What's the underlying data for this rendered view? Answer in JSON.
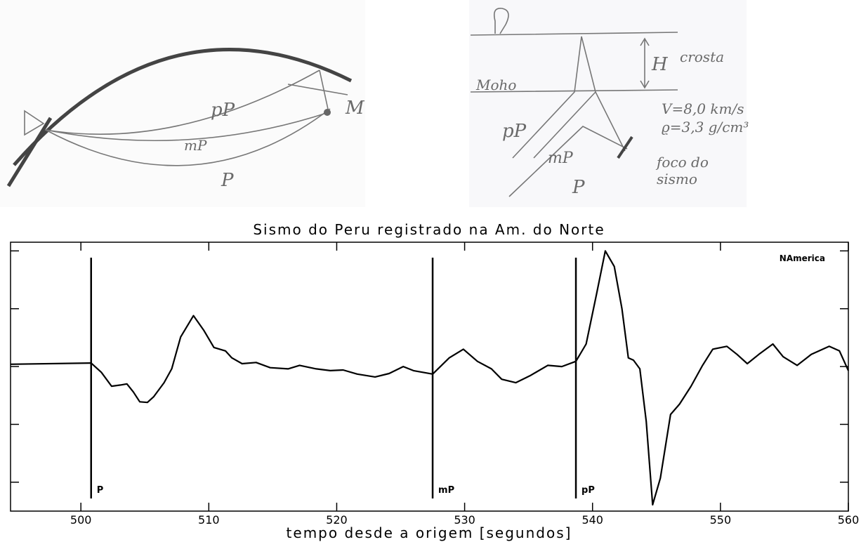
{
  "sketches": {
    "ray_paths": {
      "pP": "pP",
      "mP": "mP",
      "P": "P",
      "station": "M"
    },
    "crust_model": {
      "H": "H",
      "crust": "crosta",
      "moho": "Moho",
      "velocity": "V=8,0 km/s",
      "density": "ϱ=3,3 g/cm³",
      "pP": "pP",
      "mP": "mP",
      "P": "P",
      "focus_1": "foco do",
      "focus_2": "sismo"
    }
  },
  "chart_data": {
    "type": "line",
    "title": "Sismo do Peru registrado na Am. do Norte",
    "xlabel": "tempo desde a origem [segundos]",
    "annotation": "NAmerica",
    "xlim": [
      494.5,
      560
    ],
    "xticks": [
      500,
      510,
      520,
      530,
      540,
      550,
      560
    ],
    "ylim": [
      -2.5,
      2.15
    ],
    "yticks": [
      -2,
      -1,
      0,
      1,
      2
    ],
    "color": "#000000",
    "x": [
      494.5,
      500.8,
      501.6,
      502.4,
      503.1,
      503.6,
      504.1,
      504.6,
      505.2,
      505.7,
      506.5,
      507.1,
      507.8,
      508.8,
      509.6,
      510.4,
      511.3,
      511.8,
      512.6,
      513.7,
      514.8,
      516.2,
      517.1,
      518.4,
      519.5,
      520.5,
      521.6,
      523.0,
      524.1,
      525.2,
      526.0,
      527.5,
      528.8,
      529.9,
      531.0,
      532.1,
      532.9,
      534.0,
      535.1,
      536.5,
      537.6,
      538.7,
      539.5,
      540.3,
      541.0,
      541.7,
      542.3,
      542.8,
      543.2,
      543.7,
      544.2,
      544.7,
      545.3,
      546.1,
      546.8,
      547.7,
      548.6,
      549.4,
      550.5,
      551.3,
      552.1,
      553.0,
      554.1,
      554.9,
      556.0,
      557.1,
      558.5,
      559.3,
      560.0
    ],
    "values": [
      0.04,
      0.06,
      -0.1,
      -0.34,
      -0.32,
      -0.3,
      -0.44,
      -0.61,
      -0.62,
      -0.52,
      -0.28,
      -0.04,
      0.51,
      0.88,
      0.63,
      0.33,
      0.27,
      0.15,
      0.05,
      0.07,
      -0.02,
      -0.04,
      0.02,
      -0.04,
      -0.07,
      -0.06,
      -0.13,
      -0.18,
      -0.12,
      0,
      -0.07,
      -0.13,
      0.15,
      0.3,
      0.09,
      -0.04,
      -0.22,
      -0.28,
      -0.16,
      0.02,
      0,
      0.09,
      0.39,
      1.24,
      2.0,
      1.73,
      1.0,
      0.15,
      0.11,
      -0.04,
      -0.95,
      -2.39,
      -1.93,
      -0.83,
      -0.65,
      -0.34,
      0.02,
      0.3,
      0.35,
      0.21,
      0.05,
      0.21,
      0.39,
      0.17,
      0.02,
      0.21,
      0.35,
      0.27,
      -0.07
    ],
    "markers": [
      {
        "x": 500.8,
        "label": "P"
      },
      {
        "x": 527.5,
        "label": "mP"
      },
      {
        "x": 538.7,
        "label": "pP"
      }
    ]
  }
}
